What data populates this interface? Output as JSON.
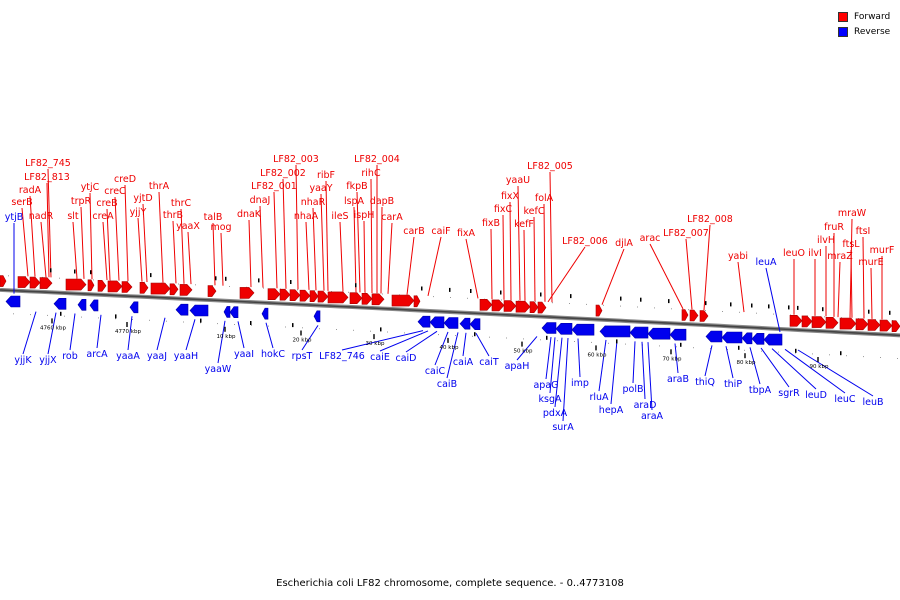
{
  "legend": {
    "forward_label": "Forward",
    "reverse_label": "Reverse",
    "forward_color": "#ff0000",
    "reverse_color": "#0000ff"
  },
  "caption": "Escherichia coli LF82 chromosome, complete sequence. - 0..4773108",
  "colors": {
    "forward": "#ee0000",
    "reverse": "#0000ee",
    "backbone": "#555555"
  },
  "scale_labels": [
    "4760 kbp",
    "4770 kbp",
    "10 kbp",
    "20 kbp",
    "30 kbp",
    "40 kbp",
    "50 kbp",
    "60 kbp",
    "70 kbp",
    "80 kbp",
    "90 kbp"
  ],
  "forward_genes": [
    "LF82_745",
    "LF82_813",
    "radA",
    "serB",
    "nadR",
    "slt",
    "trpR",
    "ytjC",
    "creB",
    "creA",
    "creC",
    "creD",
    "yjtD",
    "yjjY",
    "thrA",
    "thrC",
    "thrB",
    "yaaX",
    "talB",
    "mog",
    "dnaK",
    "dnaJ",
    "LF82_001",
    "LF82_002",
    "LF82_003",
    "ribF",
    "yaaY",
    "nhaR",
    "nhaA",
    "ileS",
    "fkpB",
    "lspA",
    "ispH",
    "LF82_004",
    "rihC",
    "dapB",
    "carA",
    "carB",
    "caiF",
    "fixA",
    "fixB",
    "fixC",
    "fixX",
    "yaaU",
    "kefF",
    "kefC",
    "folA",
    "LF82_005",
    "LF82_006",
    "djlA",
    "arac",
    "LF82_007",
    "LF82_008",
    "yabi",
    "leuO",
    "ilvI",
    "ilvH",
    "fruR",
    "mraZ",
    "mraW",
    "ftsL",
    "ftsI",
    "murE",
    "murF"
  ],
  "reverse_genes": [
    "ytjB",
    "yjjK",
    "yjjX",
    "rob",
    "arcA",
    "yaaA",
    "yaaJ",
    "yaaH",
    "yaaW",
    "yaaI",
    "hokC",
    "rpsT",
    "LF82_746",
    "caiE",
    "caiD",
    "caiC",
    "caiB",
    "caiA",
    "caiT",
    "apaH",
    "apaG",
    "ksgA",
    "pdxA",
    "surA",
    "imp",
    "rluA",
    "hepA",
    "polB",
    "araD",
    "araA",
    "araB",
    "thiQ",
    "thiP",
    "tbpA",
    "sgrR",
    "leuD",
    "leuC",
    "leuB",
    "leuA"
  ]
}
